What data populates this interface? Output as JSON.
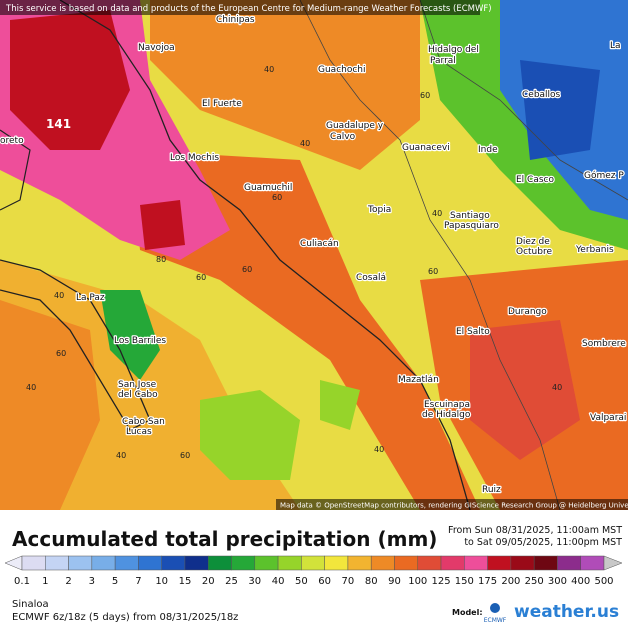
{
  "map": {
    "attribution_top": "This service is based on data and products of the European Centre for Medium-range Weather Forecasts (ECMWF)",
    "attribution_bottom": "Map data © OpenStreetMap contributors, rendering GIScience Research Group @ Heidelberg University",
    "max_label": "141",
    "places": [
      "Chinipas",
      "Navojoa",
      "Hidalgo del",
      "Parral",
      "Guachochi",
      "El Fuerte",
      "Ceballos",
      "Los Mochis",
      "Guadalupe y",
      "Calvo",
      "Guanacevi",
      "Inde",
      "Guamuchil",
      "El Casco",
      "Gómez P",
      "Topia",
      "Santiago",
      "Papasquiaro",
      "Culiacán",
      "Diez de",
      "Octubre",
      "Yerbanis",
      "Cosalá",
      "La Paz",
      "Durango",
      "El Salto",
      "Los Barriles",
      "Sombrere",
      "San Jose",
      "del Cabo",
      "Mazatlán",
      "Cabo San",
      "Lucas",
      "Escuinapa",
      "de Hidalgo",
      "Valparai",
      "Ruiz",
      "oreto",
      "La"
    ],
    "contours": [
      "40",
      "60",
      "80",
      "60",
      "60",
      "40",
      "60",
      "40",
      "40",
      "60",
      "40",
      "60",
      "40",
      "40",
      "60",
      "40"
    ]
  },
  "title": "Accumulated total precipitation (mm)",
  "period": [
    "From Sun 08/31/2025, 11:00am MST",
    "to Sat 09/05/2025, 11:00pm MST"
  ],
  "legend": {
    "ticks": [
      "0.1",
      "1",
      "2",
      "3",
      "5",
      "7",
      "10",
      "15",
      "20",
      "25",
      "30",
      "40",
      "50",
      "60",
      "70",
      "80",
      "90",
      "100",
      "125",
      "150",
      "175",
      "200",
      "250",
      "300",
      "400",
      "500"
    ],
    "colors": [
      "#ececf8",
      "#dcdcf2",
      "#c4d4f4",
      "#9cc2f0",
      "#78aee8",
      "#4f92e0",
      "#2f74d2",
      "#1a4fb4",
      "#0f2f8c",
      "#0d8f3a",
      "#25a838",
      "#5cc22c",
      "#96d42a",
      "#d2e23a",
      "#f2e63c",
      "#f2b430",
      "#ee8a26",
      "#ea6a22",
      "#e04c36",
      "#e23a6a",
      "#ee4e9a",
      "#c01020",
      "#9a0a18",
      "#6e0712",
      "#8c2c8c",
      "#b04cb8",
      "#c8c8c8"
    ]
  },
  "footer": {
    "region": "Sinaloa",
    "run": "ECMWF 6z/18z (5 days) from 08/31/2025/18z",
    "model_label": "Model:",
    "model": "ECMWF",
    "brand": "weather.us"
  }
}
